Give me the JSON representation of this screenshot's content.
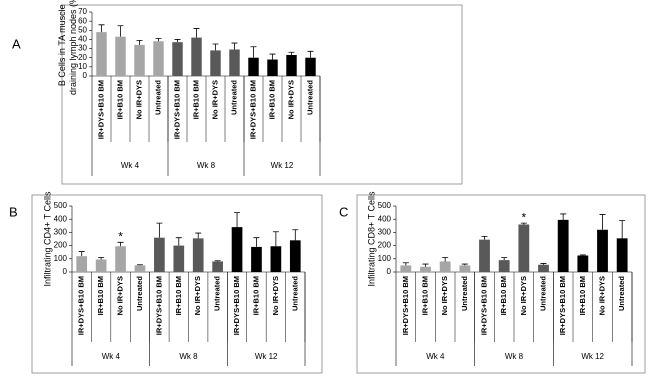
{
  "chart_data": [
    {
      "type": "bar",
      "panel": "A",
      "ylabel": "B Cells in TA muscle draining lymph nodes (%)",
      "ylim": [
        0,
        70
      ],
      "yticks": [
        0,
        10,
        20,
        30,
        40,
        50,
        60,
        70
      ],
      "groups": [
        {
          "name": "Wk 4",
          "color": "#a6a6a6",
          "categories": [
            "IR+DYS+B10 BM",
            "IR+B10 BM",
            "No IR+DYS",
            "Untreated"
          ],
          "values": [
            48,
            43,
            34,
            38
          ],
          "errors": [
            8,
            12,
            5,
            3
          ],
          "annotations": [
            null,
            null,
            null,
            null
          ]
        },
        {
          "name": "Wk 8",
          "color": "#595959",
          "categories": [
            "IR+DYS+B10 BM",
            "IR+B10 BM",
            "No IR+DYS",
            "Untreated"
          ],
          "values": [
            37,
            42,
            28,
            29
          ],
          "errors": [
            3,
            10,
            7,
            7
          ],
          "annotations": [
            null,
            null,
            null,
            null
          ]
        },
        {
          "name": "Wk 12",
          "color": "#000000",
          "categories": [
            "IR+DYS+B10 BM",
            "IR+B10 BM",
            "No IR+DYS",
            "Untreated"
          ],
          "values": [
            20,
            18,
            23,
            20
          ],
          "errors": [
            12,
            6,
            3,
            7
          ],
          "annotations": [
            null,
            null,
            null,
            null
          ]
        }
      ]
    },
    {
      "type": "bar",
      "panel": "B",
      "ylabel": "Infiltrating CD4+ T Cells",
      "ylim": [
        0,
        500
      ],
      "yticks": [
        0,
        100,
        200,
        300,
        400,
        500
      ],
      "groups": [
        {
          "name": "Wk 4",
          "color": "#a6a6a6",
          "categories": [
            "IR+DYS+B10 BM",
            "IR+B10 BM",
            "No IR+DYS",
            "Untreated"
          ],
          "values": [
            120,
            95,
            195,
            50
          ],
          "errors": [
            35,
            15,
            30,
            5
          ],
          "annotations": [
            null,
            null,
            "*",
            null
          ]
        },
        {
          "name": "Wk 8",
          "color": "#595959",
          "categories": [
            "IR+DYS+B10 BM",
            "IR+B10 BM",
            "No IR+DYS",
            "Untreated"
          ],
          "values": [
            260,
            200,
            255,
            80
          ],
          "errors": [
            110,
            60,
            40,
            5
          ],
          "annotations": [
            null,
            null,
            null,
            null
          ]
        },
        {
          "name": "Wk 12",
          "color": "#000000",
          "categories": [
            "IR+DYS+B10 BM",
            "IR+B10 BM",
            "No IR+DYS",
            "Untreated"
          ],
          "values": [
            340,
            190,
            195,
            240
          ],
          "errors": [
            110,
            70,
            110,
            80
          ],
          "annotations": [
            null,
            null,
            null,
            null
          ]
        }
      ]
    },
    {
      "type": "bar",
      "panel": "C",
      "ylabel": "Infiltrating CD8+ T Cells",
      "ylim": [
        0,
        500
      ],
      "yticks": [
        0,
        100,
        200,
        300,
        400,
        500
      ],
      "groups": [
        {
          "name": "Wk 4",
          "color": "#a6a6a6",
          "categories": [
            "IR+DYS+B10 BM",
            "IR+B10 BM",
            "No IR+DYS",
            "Untreated"
          ],
          "values": [
            50,
            40,
            80,
            50
          ],
          "errors": [
            20,
            20,
            30,
            10
          ],
          "annotations": [
            null,
            null,
            null,
            null
          ]
        },
        {
          "name": "Wk 8",
          "color": "#595959",
          "categories": [
            "IR+DYS+B10 BM",
            "IR+B10 BM",
            "No IR+DYS",
            "Untreated"
          ],
          "values": [
            245,
            90,
            360,
            55
          ],
          "errors": [
            25,
            20,
            10,
            10
          ],
          "annotations": [
            null,
            null,
            "*",
            null
          ]
        },
        {
          "name": "Wk 12",
          "color": "#000000",
          "categories": [
            "IR+DYS+B10 BM",
            "IR+B10 BM",
            "No IR+DYS",
            "Untreated"
          ],
          "values": [
            395,
            125,
            320,
            255
          ],
          "errors": [
            45,
            5,
            115,
            135
          ],
          "annotations": [
            null,
            null,
            null,
            null
          ]
        }
      ]
    }
  ]
}
